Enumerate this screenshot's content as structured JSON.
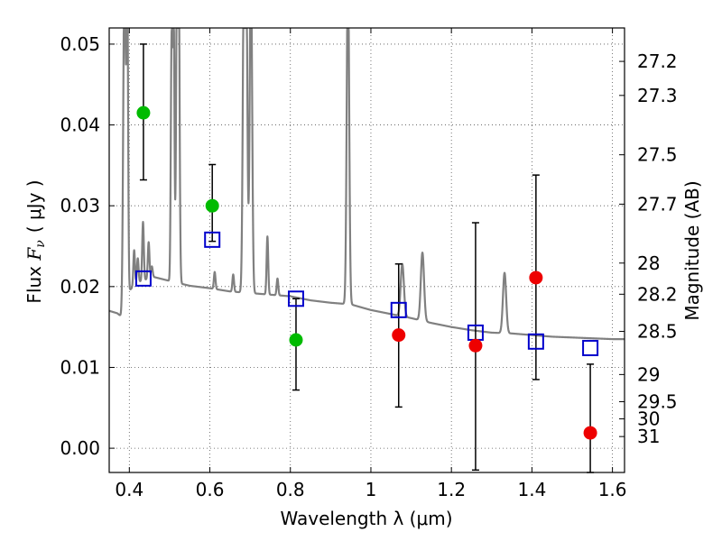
{
  "chart_data": {
    "type": "scatter",
    "xlabel": "Wavelength  λ (μm)",
    "ylabel_parts": {
      "prefix": "Flux ",
      "var": "F",
      "sub": "ν",
      "unit": "( μJy )"
    },
    "ylabel_right": "Magnitude (AB)",
    "xlim": [
      0.35,
      1.63
    ],
    "ylim": [
      -0.003,
      0.052
    ],
    "grid": true,
    "x_ticks": [
      0.4,
      0.6,
      0.8,
      1.0,
      1.2,
      1.4,
      1.6
    ],
    "x_tick_labels": [
      "0.4",
      "0.6",
      "0.8",
      "1",
      "1.2",
      "1.4",
      "1.6"
    ],
    "y_ticks": [
      0.0,
      0.01,
      0.02,
      0.03,
      0.04,
      0.05
    ],
    "y_tick_labels": [
      "0.00",
      "0.01",
      "0.02",
      "0.03",
      "0.04",
      "0.05"
    ],
    "mag_ticks": [
      27.2,
      27.3,
      27.5,
      27.7,
      28,
      28.2,
      28.5,
      29,
      29.5,
      30,
      31
    ],
    "mag_tick_labels": [
      "27.2",
      "27.3",
      "27.5",
      "27.7",
      "28",
      "28.2",
      "28.5",
      "29",
      "29.5",
      "30",
      "31"
    ],
    "colors": {
      "spectrum": "#808080",
      "detection": "#00bb00",
      "upper": "#ee0000",
      "model": "#0000cc",
      "errorbar": "#000000"
    },
    "observed": [
      {
        "x": 0.435,
        "y": 0.0415,
        "ylo": 0.0332,
        "yhi": 0.05,
        "kind": "detection"
      },
      {
        "x": 0.606,
        "y": 0.03,
        "ylo": 0.0256,
        "yhi": 0.0351,
        "kind": "detection"
      },
      {
        "x": 0.814,
        "y": 0.0134,
        "ylo": 0.0072,
        "yhi": 0.0185,
        "kind": "detection"
      },
      {
        "x": 1.069,
        "y": 0.014,
        "ylo": 0.0051,
        "yhi": 0.0228,
        "kind": "upper"
      },
      {
        "x": 1.26,
        "y": 0.0127,
        "ylo": -0.0027,
        "yhi": 0.0279,
        "kind": "upper"
      },
      {
        "x": 1.41,
        "y": 0.0211,
        "ylo": 0.0085,
        "yhi": 0.0338,
        "kind": "upper"
      },
      {
        "x": 1.545,
        "y": 0.0019,
        "ylo": -0.003,
        "yhi": 0.0104,
        "kind": "upper"
      }
    ],
    "model_photometry": [
      {
        "x": 0.435,
        "y": 0.021
      },
      {
        "x": 0.606,
        "y": 0.0258
      },
      {
        "x": 0.814,
        "y": 0.0185
      },
      {
        "x": 1.069,
        "y": 0.0171
      },
      {
        "x": 1.26,
        "y": 0.0143
      },
      {
        "x": 1.41,
        "y": 0.0132
      },
      {
        "x": 1.545,
        "y": 0.0124
      }
    ],
    "spectrum_continuum": [
      [
        0.35,
        0.017
      ],
      [
        0.37,
        0.0167
      ],
      [
        0.38,
        0.0163
      ],
      [
        0.385,
        0.0168
      ],
      [
        0.4,
        0.0195
      ],
      [
        0.42,
        0.0205
      ],
      [
        0.46,
        0.0212
      ],
      [
        0.5,
        0.0207
      ],
      [
        0.55,
        0.0201
      ],
      [
        0.6,
        0.0198
      ],
      [
        0.65,
        0.0194
      ],
      [
        0.7,
        0.0192
      ],
      [
        0.75,
        0.019
      ],
      [
        0.8,
        0.0188
      ],
      [
        0.85,
        0.0183
      ],
      [
        0.9,
        0.018
      ],
      [
        0.95,
        0.0178
      ],
      [
        1.0,
        0.0171
      ],
      [
        1.05,
        0.0166
      ],
      [
        1.1,
        0.0161
      ],
      [
        1.15,
        0.0155
      ],
      [
        1.2,
        0.015
      ],
      [
        1.25,
        0.0146
      ],
      [
        1.3,
        0.0143
      ],
      [
        1.35,
        0.0142
      ],
      [
        1.4,
        0.014
      ],
      [
        1.45,
        0.0138
      ],
      [
        1.5,
        0.0137
      ],
      [
        1.55,
        0.0136
      ],
      [
        1.6,
        0.0135
      ],
      [
        1.63,
        0.0135
      ]
    ],
    "spectrum_lines": [
      {
        "x": 0.388,
        "peak": 0.06,
        "w": 0.003
      },
      {
        "x": 0.395,
        "peak": 0.056,
        "w": 0.002
      },
      {
        "x": 0.412,
        "peak": 0.0245,
        "w": 0.002
      },
      {
        "x": 0.421,
        "peak": 0.0235,
        "w": 0.002
      },
      {
        "x": 0.434,
        "peak": 0.028,
        "w": 0.002
      },
      {
        "x": 0.448,
        "peak": 0.0255,
        "w": 0.002
      },
      {
        "x": 0.456,
        "peak": 0.0225,
        "w": 0.002
      },
      {
        "x": 0.505,
        "peak": 0.05,
        "w": 0.002
      },
      {
        "x": 0.51,
        "peak": 0.055,
        "w": 0.002
      },
      {
        "x": 0.519,
        "peak": 0.06,
        "w": 0.0025
      },
      {
        "x": 0.522,
        "peak": 0.06,
        "w": 0.0025
      },
      {
        "x": 0.612,
        "peak": 0.0218,
        "w": 0.002
      },
      {
        "x": 0.658,
        "peak": 0.0215,
        "w": 0.002
      },
      {
        "x": 0.685,
        "peak": 0.06,
        "w": 0.003
      },
      {
        "x": 0.69,
        "peak": 0.06,
        "w": 0.003
      },
      {
        "x": 0.702,
        "peak": 0.06,
        "w": 0.003
      },
      {
        "x": 0.743,
        "peak": 0.0262,
        "w": 0.002
      },
      {
        "x": 0.768,
        "peak": 0.021,
        "w": 0.002
      },
      {
        "x": 0.943,
        "peak": 0.06,
        "w": 0.003
      },
      {
        "x": 1.078,
        "peak": 0.0228,
        "w": 0.004
      },
      {
        "x": 1.128,
        "peak": 0.0242,
        "w": 0.004
      },
      {
        "x": 1.332,
        "peak": 0.0217,
        "w": 0.004
      }
    ]
  }
}
